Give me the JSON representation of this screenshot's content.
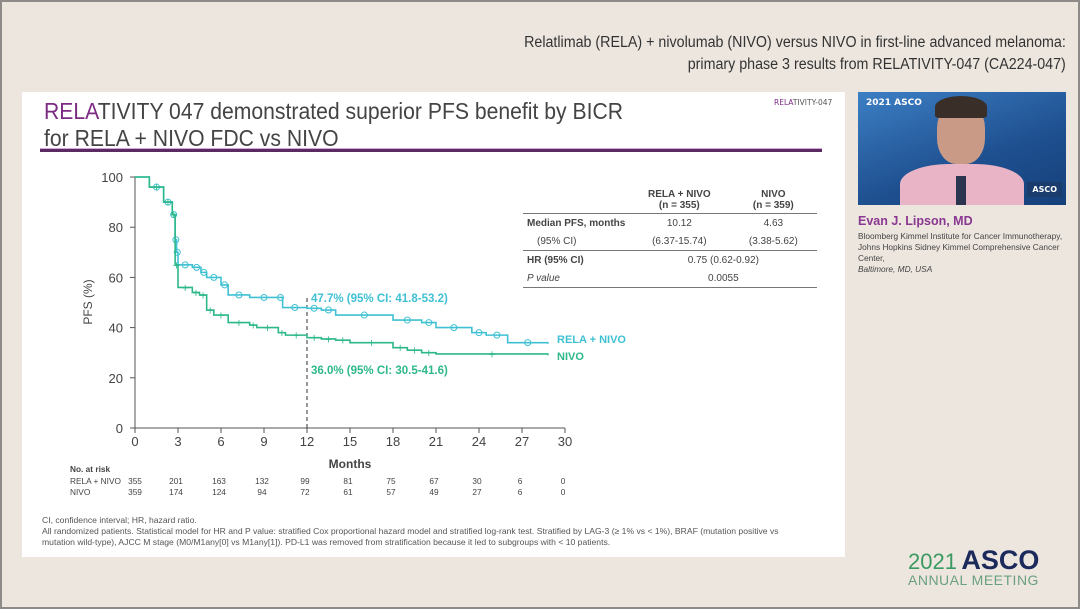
{
  "header": {
    "line1": "Relatlimab (RELA) + nivolumab (NIVO) versus NIVO in first-line advanced melanoma:",
    "line2": "primary phase 3 results from RELATIVITY-047 (CA224-047)"
  },
  "slide": {
    "title_accent": "RELA",
    "title_rest1": "TIVITY 047 demonstrated superior PFS benefit by BICR",
    "title_line2": "for RELA + NIVO FDC vs NIVO",
    "tag_accent": "RELA",
    "tag_rest": "TIVITY-047"
  },
  "summary_table": {
    "col1": "RELA + NIVO",
    "col1_n": "(n = 355)",
    "col2": "NIVO",
    "col2_n": "(n = 359)",
    "rows": [
      {
        "label": "Median PFS, months",
        "v1": "10.12",
        "v2": "4.63"
      },
      {
        "label": "(95% CI)",
        "v1": "(6.37-15.74)",
        "v2": "(3.38-5.62)"
      },
      {
        "label": "HR (95% CI)",
        "v": "0.75 (0.62-0.92)"
      },
      {
        "label": "P value",
        "v": "0.0055"
      }
    ]
  },
  "footnotes": {
    "line1": "CI, confidence interval; HR, hazard ratio.",
    "line2": "All randomized patients. Statistical model for HR and P value: stratified Cox proportional hazard model and stratified log-rank test. Stratified by LAG-3 (≥ 1% vs < 1%), BRAF (mutation positive vs mutation wild-type), AJCC M stage (M0/M1any[0] vs M1any[1]). PD-L1 was removed from stratification because it led to subgroups with < 10 patients."
  },
  "speaker": {
    "video_logo": "2021 ASCO",
    "video_badge": "ASCO",
    "name": "Evan J. Lipson, MD",
    "affiliation": "Bloomberg Kimmel Institute for Cancer Immunotherapy, Johns Hopkins Sidney Kimmel Comprehensive Cancer Center,",
    "location": "Baltimore, MD, USA"
  },
  "brand": {
    "year": "2021",
    "word": "ASCO",
    "sub": "ANNUAL MEETING"
  },
  "colors": {
    "rela": "#3fc1d3",
    "nivo": "#2db88a",
    "accent": "#7c2b83"
  },
  "chart_data": {
    "type": "line",
    "subtype": "kaplan-meier",
    "xlabel": "Months",
    "ylabel": "PFS (%)",
    "xlim": [
      0,
      30
    ],
    "ylim": [
      0,
      100
    ],
    "xticks": [
      0,
      3,
      6,
      9,
      12,
      15,
      18,
      21,
      24,
      27,
      30
    ],
    "yticks": [
      0,
      20,
      40,
      60,
      80,
      100
    ],
    "grid": false,
    "reference_line_x": 12,
    "series": [
      {
        "name": "RELA + NIVO",
        "color": "#3fc1d3",
        "annotation": "47.7% (95% CI: 41.8-53.2)",
        "points": [
          [
            0,
            100
          ],
          [
            1,
            96
          ],
          [
            2,
            90
          ],
          [
            2.6,
            85
          ],
          [
            2.8,
            75
          ],
          [
            2.9,
            70
          ],
          [
            3,
            65
          ],
          [
            4,
            64
          ],
          [
            4.6,
            62
          ],
          [
            5,
            60
          ],
          [
            6,
            57
          ],
          [
            6.5,
            53
          ],
          [
            8,
            52
          ],
          [
            10,
            52
          ],
          [
            10.3,
            48
          ],
          [
            12,
            47.7
          ],
          [
            13,
            47
          ],
          [
            14,
            45
          ],
          [
            18,
            43
          ],
          [
            20,
            42
          ],
          [
            21,
            40
          ],
          [
            23.5,
            38
          ],
          [
            24.5,
            37
          ],
          [
            26,
            34
          ],
          [
            28.8,
            33.5
          ]
        ],
        "at_risk": [
          355,
          201,
          163,
          132,
          99,
          81,
          75,
          67,
          30,
          6,
          0
        ]
      },
      {
        "name": "NIVO",
        "color": "#2db88a",
        "annotation": "36.0% (95% CI: 30.5-41.6)",
        "points": [
          [
            0,
            100
          ],
          [
            1,
            96
          ],
          [
            2,
            90
          ],
          [
            2.6,
            85
          ],
          [
            2.8,
            65
          ],
          [
            3,
            56
          ],
          [
            4,
            54
          ],
          [
            4.5,
            53
          ],
          [
            5,
            47
          ],
          [
            5.5,
            45
          ],
          [
            6.5,
            42
          ],
          [
            8,
            41
          ],
          [
            8.5,
            40
          ],
          [
            10,
            38
          ],
          [
            10.5,
            37
          ],
          [
            12,
            36
          ],
          [
            13,
            35.5
          ],
          [
            14,
            35
          ],
          [
            15,
            34
          ],
          [
            18,
            32
          ],
          [
            19,
            31
          ],
          [
            20,
            30
          ],
          [
            21,
            29.5
          ],
          [
            28.8,
            29
          ]
        ],
        "at_risk": [
          359,
          174,
          124,
          94,
          72,
          61,
          57,
          49,
          27,
          6,
          0
        ]
      }
    ],
    "at_risk_title": "No. at risk"
  }
}
